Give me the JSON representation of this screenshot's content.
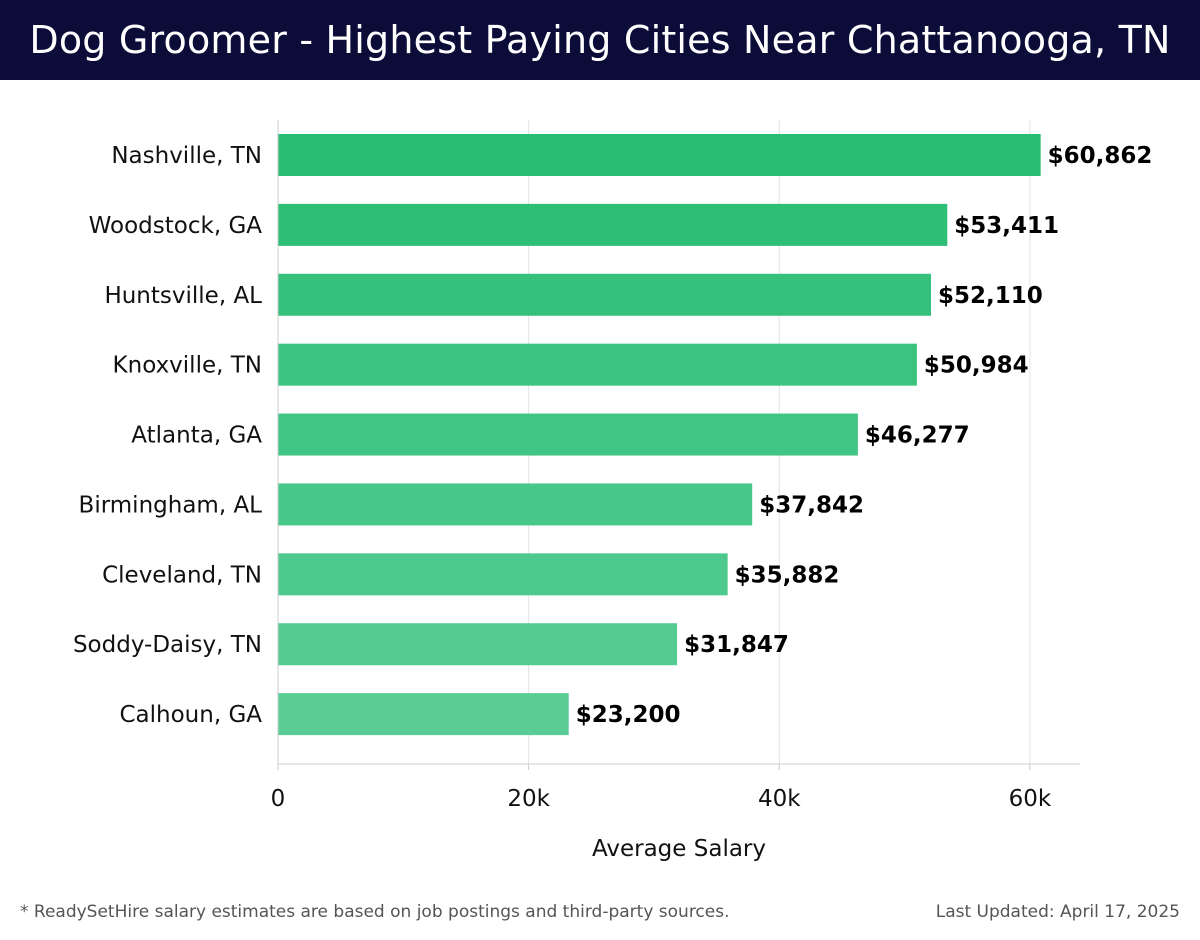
{
  "header": {
    "title": "Dog Groomer - Highest Paying Cities Near Chattanooga, TN"
  },
  "chart_data": {
    "type": "bar",
    "orientation": "horizontal",
    "categories": [
      "Nashville, TN",
      "Woodstock, GA",
      "Huntsville, AL",
      "Knoxville, TN",
      "Atlanta, GA",
      "Birmingham, AL",
      "Cleveland, TN",
      "Soddy-Daisy, TN",
      "Calhoun, GA"
    ],
    "values": [
      60862,
      53411,
      52110,
      50984,
      46277,
      37842,
      35882,
      31847,
      23200
    ],
    "value_labels": [
      "$60,862",
      "$53,411",
      "$52,110",
      "$50,984",
      "$46,277",
      "$37,842",
      "$35,882",
      "$31,847",
      "$23,200"
    ],
    "xlabel": "Average Salary",
    "ylabel": "",
    "xlim": [
      0,
      64000
    ],
    "xticks": [
      0,
      20000,
      40000,
      60000
    ],
    "xtick_labels": [
      "0",
      "20k",
      "40k",
      "60k"
    ],
    "grid": "vertical",
    "colors": {
      "bar_top": "#28bd72",
      "bar_bottom": "#5acd97",
      "grid": "#e3e3e3",
      "axis": "#cccccc"
    }
  },
  "footer": {
    "note": "* ReadySetHire salary estimates are based on job postings and third-party sources.",
    "updated": "Last Updated: April 17, 2025"
  }
}
